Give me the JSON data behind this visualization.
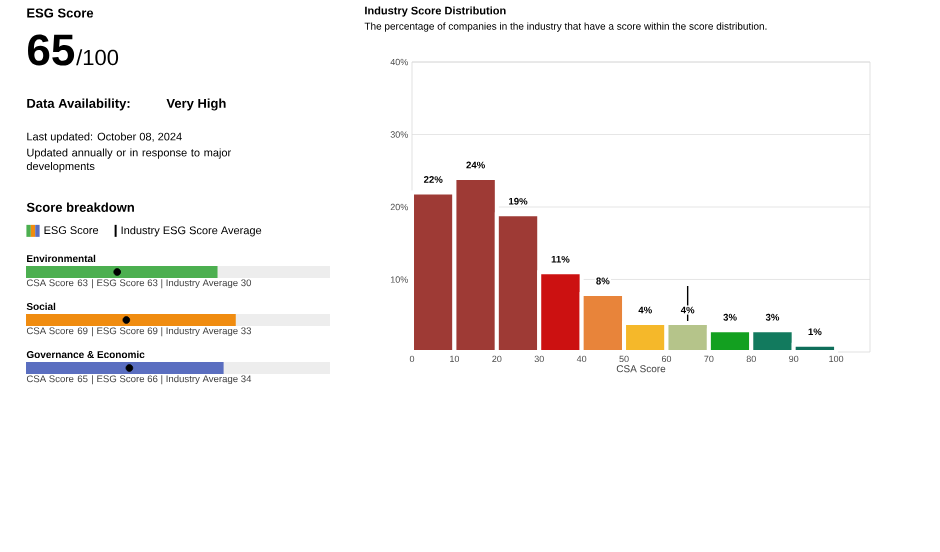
{
  "chart_data": [
    {
      "type": "other",
      "title": "ESG Score",
      "annotations": [
        "65",
        "/100",
        "Data Availability:",
        "Very High",
        "Last updated: October 08, 2024",
        "Updated annually or in response to major developments"
      ]
    },
    {
      "type": "bar",
      "orientation": "horizontal",
      "title": "Score breakdown",
      "categories": [
        "Environmental",
        "Social",
        "Governance & Economic"
      ],
      "xlim": [
        0,
        100
      ],
      "legend": "top left",
      "series": [
        {
          "name": "ESG Score",
          "values": [
            63,
            69,
            65
          ],
          "value_labels": [
            "63",
            "69",
            "65"
          ],
          "colors": [
            "#4caf50",
            "#f08c10",
            "#5a6ec0"
          ]
        },
        {
          "name": "Industry ESG Score Average",
          "type": "scatter",
          "color": "#000000",
          "values": [
            30,
            33,
            34
          ]
        }
      ],
      "annotations": [
        "CSA Score",
        "| ESG Score 63 | Industry Average 30",
        "CSA Score",
        "| ESG Score 69 | Industry Average 33",
        "CSA Score",
        "| ESG Score 66 | Industry Average 34"
      ]
    },
    {
      "type": "histogram",
      "title": "Industry Score Distribution",
      "subtitle": "The percentage of companies in the industry that have a score within the score distribution.",
      "xlabel": "CSA Score",
      "bins": [
        0,
        10,
        20,
        30,
        40,
        50,
        60,
        70,
        80,
        90,
        100
      ],
      "values": [
        22,
        24,
        19,
        11,
        8,
        4,
        4,
        3,
        3,
        1
      ],
      "colors": [
        "#9e3a35",
        "#9e3a35",
        "#9e3a35",
        "#cc1111",
        "#e8843a",
        "#f5b82a",
        "#b5c48a",
        "#13a020",
        "#127a5e",
        "#0f6e5a"
      ],
      "value_labels": [
        "22%",
        "24%",
        "19%",
        "11%",
        "8%",
        "4%",
        "4%",
        "3%",
        "3%",
        "1%"
      ],
      "xlim": [
        0,
        108
      ],
      "xticks": [
        0,
        10,
        20,
        30,
        40,
        50,
        60,
        70,
        80,
        90,
        100
      ],
      "ylim": [
        0,
        40
      ],
      "yticks": [
        {
          "value": 10,
          "label": "10%"
        },
        {
          "value": 20,
          "label": "20%"
        },
        {
          "value": 30,
          "label": "30%"
        },
        {
          "value": 40,
          "label": "40%"
        }
      ],
      "grid": "y",
      "ref_lines": [
        {
          "axis": "x",
          "value": 65,
          "color": "#000000"
        }
      ]
    }
  ]
}
